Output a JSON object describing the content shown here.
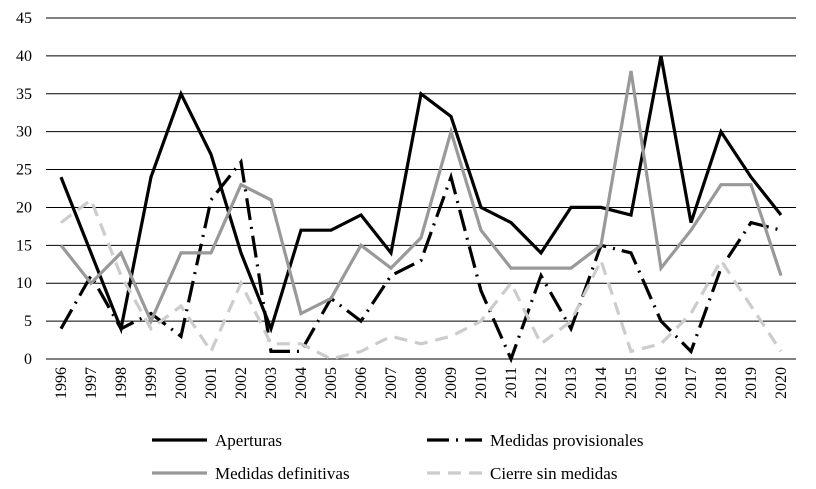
{
  "chart_data": {
    "type": "line",
    "x": [
      "1996",
      "1997",
      "1998",
      "1999",
      "2000",
      "2001",
      "2002",
      "2003",
      "2004",
      "2005",
      "2006",
      "2007",
      "2008",
      "2009",
      "2010",
      "2011",
      "2012",
      "2013",
      "2014",
      "2015",
      "2016",
      "2017",
      "2018",
      "2019",
      "2020"
    ],
    "ylim": [
      0,
      45
    ],
    "yticks": [
      0,
      5,
      10,
      15,
      20,
      25,
      30,
      35,
      40,
      45
    ],
    "grid": "horizontal",
    "legend_position": "bottom",
    "series": [
      {
        "name": "Aperturas",
        "color": "#000000",
        "style": "solid",
        "values": [
          24,
          14,
          4,
          24,
          35,
          27,
          14,
          4,
          17,
          17,
          19,
          14,
          35,
          32,
          20,
          18,
          14,
          20,
          20,
          19,
          40,
          18,
          30,
          24,
          19
        ]
      },
      {
        "name": "Medidas provisionales",
        "color": "#000000",
        "style": "dashdot",
        "values": [
          4,
          11,
          4,
          6,
          3,
          21,
          26,
          1,
          1,
          8,
          5,
          11,
          13,
          24,
          9,
          0,
          11,
          4,
          15,
          14,
          5,
          1,
          12,
          18,
          17
        ]
      },
      {
        "name": "Medidas definitivas",
        "color": "#999999",
        "style": "solid",
        "values": [
          15,
          10,
          14,
          5,
          14,
          14,
          23,
          21,
          6,
          8,
          15,
          12,
          16,
          30,
          17,
          12,
          12,
          12,
          15,
          38,
          12,
          17,
          23,
          23,
          11
        ]
      },
      {
        "name": "Cierre sin medidas",
        "color": "#cccccc",
        "style": "dashed",
        "values": [
          18,
          21,
          11,
          4,
          7,
          1,
          10,
          2,
          2,
          0,
          1,
          3,
          2,
          3,
          5,
          10,
          2,
          5,
          13,
          1,
          2,
          6,
          13,
          7,
          1
        ]
      }
    ]
  }
}
